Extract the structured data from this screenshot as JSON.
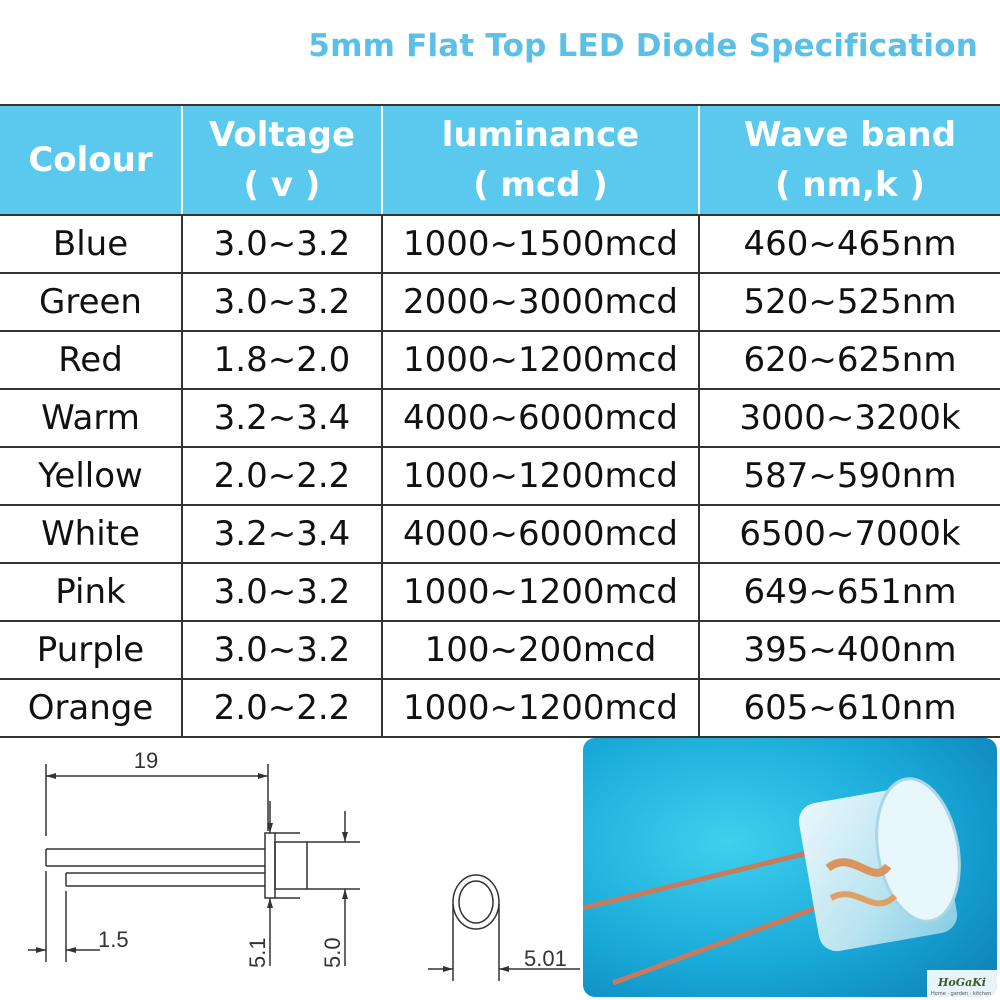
{
  "title": "5mm Flat Top LED Diode Specification",
  "table": {
    "headers": [
      {
        "line1": "Colour",
        "line2": ""
      },
      {
        "line1": "Voltage",
        "line2": "( v )"
      },
      {
        "line1": "luminance",
        "line2": "( mcd )"
      },
      {
        "line1": "Wave band",
        "line2": "( nm,k )"
      }
    ],
    "rows": [
      [
        "Blue",
        "3.0~3.2",
        "1000~1500mcd",
        "460~465nm"
      ],
      [
        "Green",
        "3.0~3.2",
        "2000~3000mcd",
        "520~525nm"
      ],
      [
        "Red",
        "1.8~2.0",
        "1000~1200mcd",
        "620~625nm"
      ],
      [
        "Warm",
        "3.2~3.4",
        "4000~6000mcd",
        "3000~3200k"
      ],
      [
        "Yellow",
        "2.0~2.2",
        "1000~1200mcd",
        "587~590nm"
      ],
      [
        "White",
        "3.2~3.4",
        "4000~6000mcd",
        "6500~7000k"
      ],
      [
        "Pink",
        "3.0~3.2",
        "1000~1200mcd",
        "649~651nm"
      ],
      [
        "Purple",
        "3.0~3.2",
        "100~200mcd",
        "395~400nm"
      ],
      [
        "Orange",
        "2.0~2.2",
        "1000~1200mcd",
        "605~610nm"
      ]
    ]
  },
  "drawing": {
    "length": "19",
    "pin_offset": "1.5",
    "flange_dia": "5.1",
    "body_dia": "5.0",
    "top_dia": "5.01"
  },
  "photo": {
    "logo_text": "HoGaKi",
    "logo_sub": "Home · garden · kitchen"
  },
  "colors": {
    "accent": "#5bc8ed",
    "title": "#5bc0e6"
  }
}
